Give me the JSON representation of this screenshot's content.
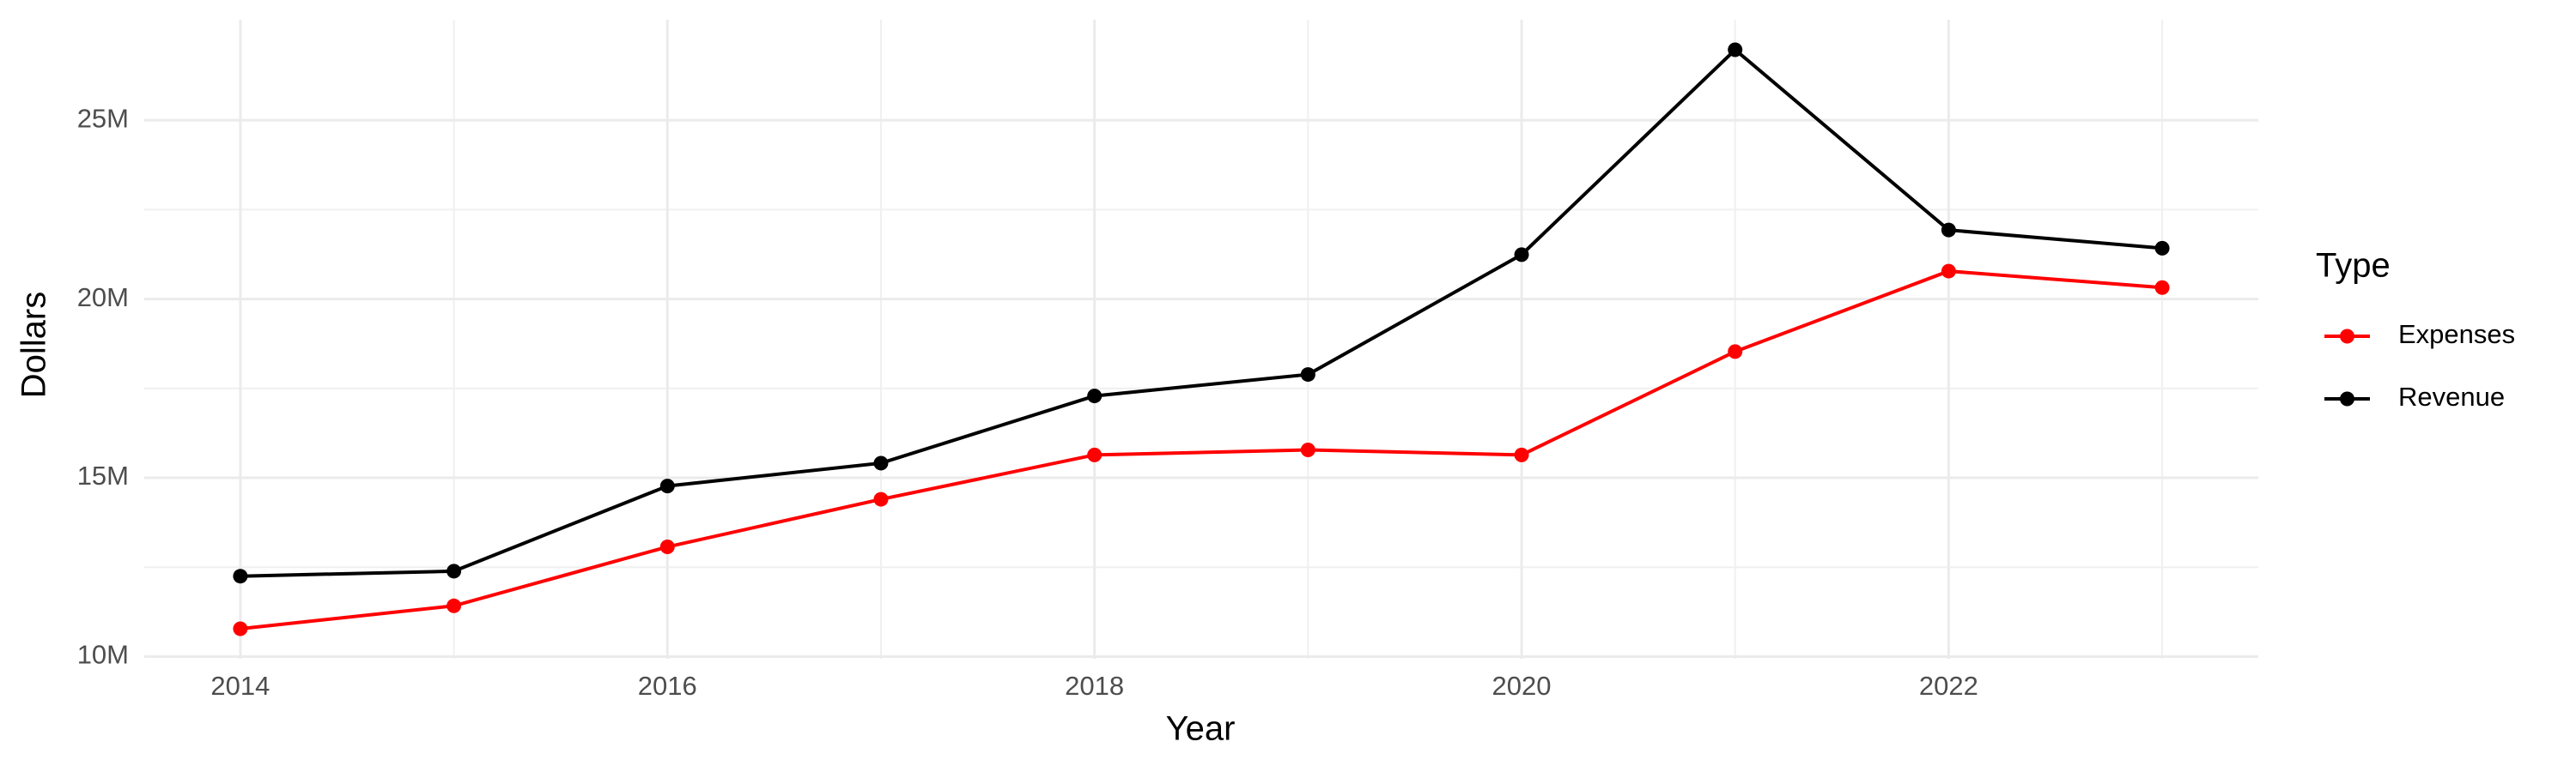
{
  "chart_data": {
    "type": "line",
    "x_label": "Year",
    "y_label": "Dollars",
    "legend_title": "Type",
    "x": [
      2014,
      2015,
      2016,
      2017,
      2018,
      2019,
      2020,
      2021,
      2022,
      2023
    ],
    "series": [
      {
        "name": "Expenses",
        "color": "#ff0000",
        "values": [
          10780000,
          11420000,
          13070000,
          14400000,
          15640000,
          15780000,
          15640000,
          18530000,
          20780000,
          20320000
        ]
      },
      {
        "name": "Revenue",
        "color": "#000000",
        "values": [
          12250000,
          12390000,
          14770000,
          15410000,
          17290000,
          17890000,
          21240000,
          26970000,
          21930000,
          21420000
        ]
      }
    ],
    "xlim": [
      2013.55,
      2023.45
    ],
    "xticks": [
      2014,
      2016,
      2018,
      2020,
      2022
    ],
    "ylim": [
      9940000,
      27810000
    ],
    "yticks": [
      {
        "value": 10000000,
        "label": "10M"
      },
      {
        "value": 15000000,
        "label": "15M"
      },
      {
        "value": 20000000,
        "label": "20M"
      },
      {
        "value": 25000000,
        "label": "25M"
      }
    ],
    "grid": true,
    "legend_position": "right"
  }
}
